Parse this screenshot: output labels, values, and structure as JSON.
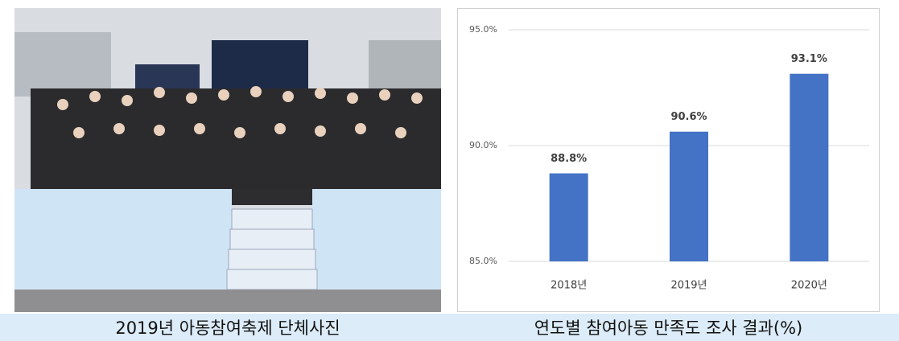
{
  "chart_data": {
    "type": "bar",
    "categories": [
      "2018년",
      "2019년",
      "2020년"
    ],
    "values": [
      88.8,
      90.6,
      93.1
    ],
    "value_labels": [
      "88.8%",
      "90.6%",
      "93.1%"
    ],
    "color": "#4472c4",
    "ylim": [
      85,
      95
    ],
    "yticks": [
      {
        "value": 85,
        "label": "85.0%"
      },
      {
        "value": 90,
        "label": "90.0%"
      },
      {
        "value": 95,
        "label": "95.0%"
      }
    ],
    "grid": true
  },
  "captions": [
    "2019년 아동참여축제 단체사진",
    "연도별 참여아동 만족도 조사 결과(%)"
  ]
}
